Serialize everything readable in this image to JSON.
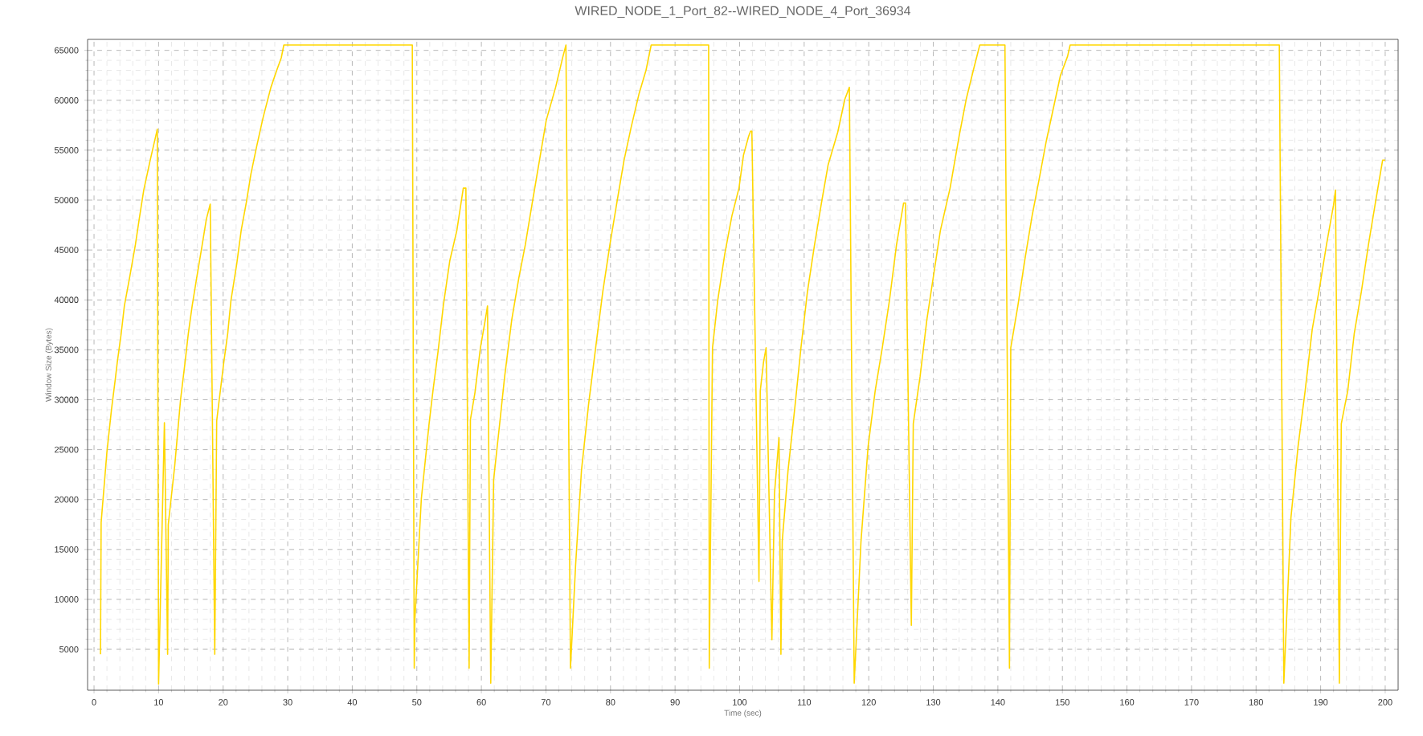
{
  "chart_data": {
    "type": "line",
    "title": "WIRED_NODE_1_Port_82--WIRED_NODE_4_Port_36934",
    "xlabel": "Time (sec)",
    "ylabel": "Window Size (Bytes)",
    "xlim": [
      -1,
      202
    ],
    "ylim": [
      900,
      66100
    ],
    "xticks": [
      0,
      10,
      20,
      30,
      40,
      50,
      60,
      70,
      80,
      90,
      100,
      110,
      120,
      130,
      140,
      150,
      160,
      170,
      180,
      190,
      200
    ],
    "yticks": [
      5000,
      10000,
      15000,
      20000,
      25000,
      30000,
      35000,
      40000,
      45000,
      50000,
      55000,
      60000,
      65000
    ],
    "grid": true,
    "series": [
      {
        "color": "#ffd700",
        "x": [
          1.0,
          1.1,
          2.0,
          2.7,
          3.3,
          3.6,
          4.2,
          4.7,
          5.5,
          6.4,
          7.0,
          7.7,
          8.7,
          9.2,
          9.8,
          10.0,
          10.9,
          11.4,
          11.5,
          12.5,
          13.4,
          14.1,
          14.6,
          15.2,
          15.9,
          16.7,
          17.4,
          18.0,
          18.7,
          19.0,
          20.1,
          20.7,
          21.2,
          22.1,
          22.8,
          23.6,
          24.3,
          25.2,
          26.2,
          27.4,
          28.3,
          29.0,
          29.4,
          49.3,
          49.6,
          49.7,
          50.7,
          51.9,
          52.5,
          53.3,
          54.1,
          55.1,
          56.2,
          57.2,
          57.6,
          58.1,
          58.3,
          59.0,
          59.85,
          60.6,
          60.95,
          61.45,
          61.9,
          62.8,
          63.6,
          64.7,
          65.8,
          66.8,
          67.9,
          69.0,
          70.05,
          71.5,
          72.6,
          73.1,
          73.8,
          74.6,
          75.5,
          76.6,
          77.7,
          78.8,
          79.9,
          81.0,
          82.1,
          83.2,
          84.4,
          85.5,
          86.3,
          95.2,
          95.3,
          95.8,
          96.6,
          97.7,
          98.8,
          99.9,
          100.6,
          101.4,
          101.7,
          101.9,
          103.0,
          103.2,
          103.7,
          104.1,
          105.0,
          105.4,
          106.1,
          106.4,
          106.6,
          107.5,
          108.6,
          109.5,
          110.5,
          111.6,
          112.7,
          113.7,
          115.2,
          116.3,
          117.0,
          117.75,
          118.8,
          119.9,
          121.0,
          122.1,
          123.2,
          124.3,
          125.4,
          125.7,
          126.6,
          126.9,
          127.95,
          129.0,
          130.1,
          131.1,
          132.6,
          134.0,
          135.1,
          136.2,
          137.2,
          141.1,
          141.8,
          142.0,
          143.1,
          144.2,
          145.3,
          146.4,
          147.5,
          148.6,
          149.7,
          150.8,
          151.2,
          183.6,
          184.3,
          185.4,
          186.5,
          187.6,
          188.7,
          189.8,
          190.9,
          192.0,
          192.3,
          192.9,
          193.2,
          194.2,
          195.2,
          196.3,
          197.4,
          198.5,
          199.6,
          200.0
        ],
        "values": [
          4500,
          17700,
          24800,
          29000,
          32100,
          33750,
          36600,
          39400,
          42200,
          45500,
          48100,
          51000,
          54000,
          55400,
          57100,
          1500,
          27700,
          4500,
          17500,
          23400,
          30000,
          33750,
          36600,
          39400,
          42200,
          45300,
          48100,
          49600,
          4500,
          27900,
          33750,
          36600,
          39900,
          43600,
          47000,
          49800,
          52600,
          55400,
          58300,
          61300,
          63000,
          64250,
          65535,
          65535,
          3100,
          8000,
          20100,
          27600,
          30900,
          34900,
          39400,
          43900,
          46950,
          51200,
          51200,
          3100,
          28000,
          30700,
          35200,
          38000,
          39400,
          1600,
          22000,
          27400,
          32300,
          38000,
          42200,
          45500,
          49800,
          54000,
          58000,
          61300,
          64300,
          65535,
          3100,
          13500,
          22900,
          29500,
          35200,
          40800,
          45500,
          49800,
          54000,
          57300,
          60600,
          63000,
          65535,
          65535,
          3100,
          35200,
          39900,
          44600,
          48400,
          51200,
          54500,
          56400,
          56900,
          56900,
          11800,
          30900,
          33750,
          35200,
          5950,
          20600,
          26200,
          4500,
          15800,
          22900,
          29500,
          35200,
          40800,
          45500,
          49800,
          53500,
          56800,
          60100,
          61300,
          1600,
          15800,
          25300,
          30900,
          35200,
          39900,
          45500,
          49700,
          49700,
          7400,
          27600,
          32300,
          38000,
          42700,
          46950,
          51200,
          56400,
          60100,
          63000,
          65535,
          65535,
          3100,
          35200,
          39400,
          44100,
          48400,
          52100,
          55900,
          59200,
          62500,
          64400,
          65535,
          65535,
          1600,
          18200,
          25300,
          30900,
          37050,
          41100,
          45500,
          49500,
          51000,
          1600,
          27600,
          30900,
          36600,
          40800,
          45500,
          49800,
          54000,
          54000
        ]
      }
    ]
  }
}
